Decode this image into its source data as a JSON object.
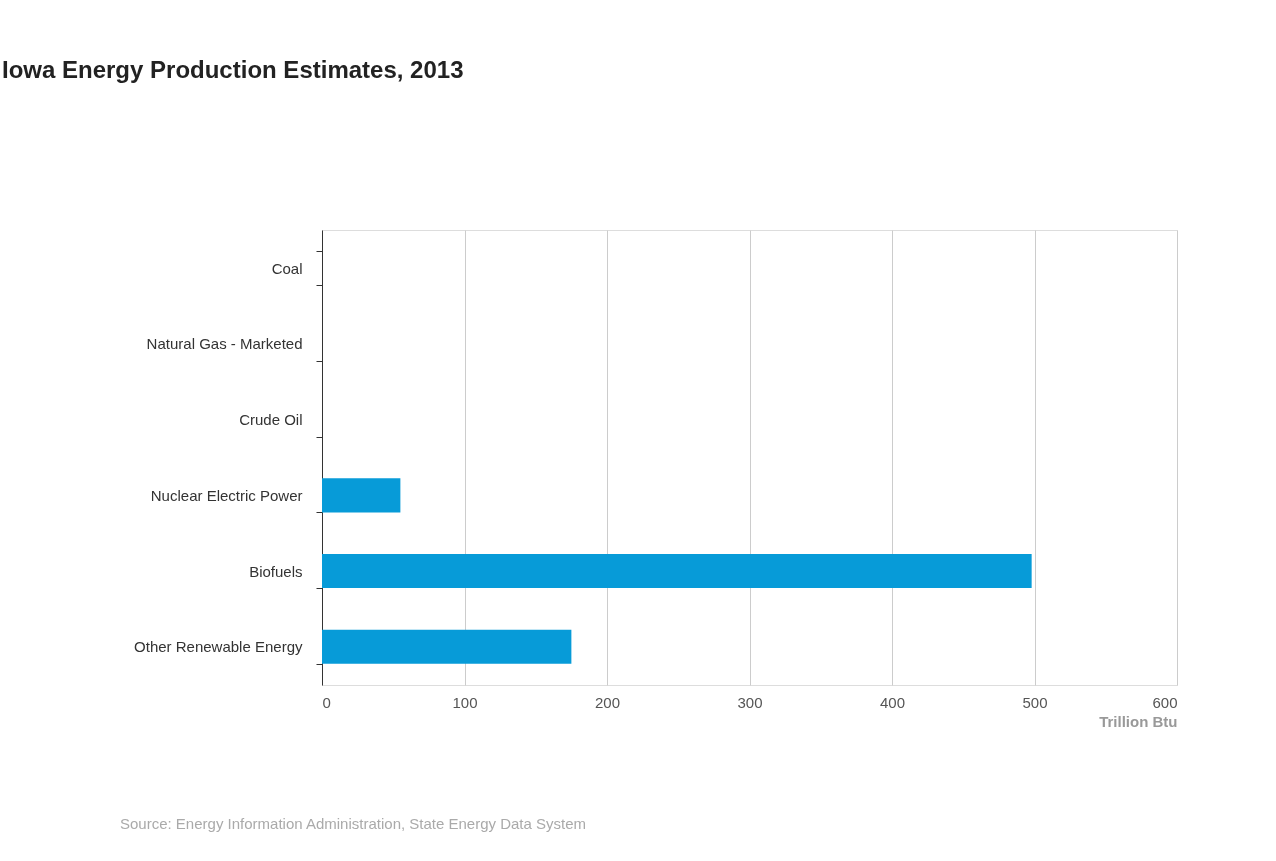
{
  "chart_data": {
    "type": "bar",
    "orientation": "horizontal",
    "title": "Iowa Energy Production Estimates, 2013",
    "categories": [
      "Coal",
      "Natural Gas - Marketed",
      "Crude Oil",
      "Nuclear Electric Power",
      "Biofuels",
      "Other Renewable Energy"
    ],
    "values": [
      0,
      0,
      0,
      55,
      498,
      175
    ],
    "color": "#079bd8",
    "xlabel": "Trillion Btu",
    "xlim": [
      0,
      600
    ],
    "xticks": [
      0,
      100,
      200,
      300,
      400,
      500,
      600
    ],
    "grid": "x",
    "annotations": [
      "Source: Energy Information Administration, State Energy Data System"
    ]
  }
}
